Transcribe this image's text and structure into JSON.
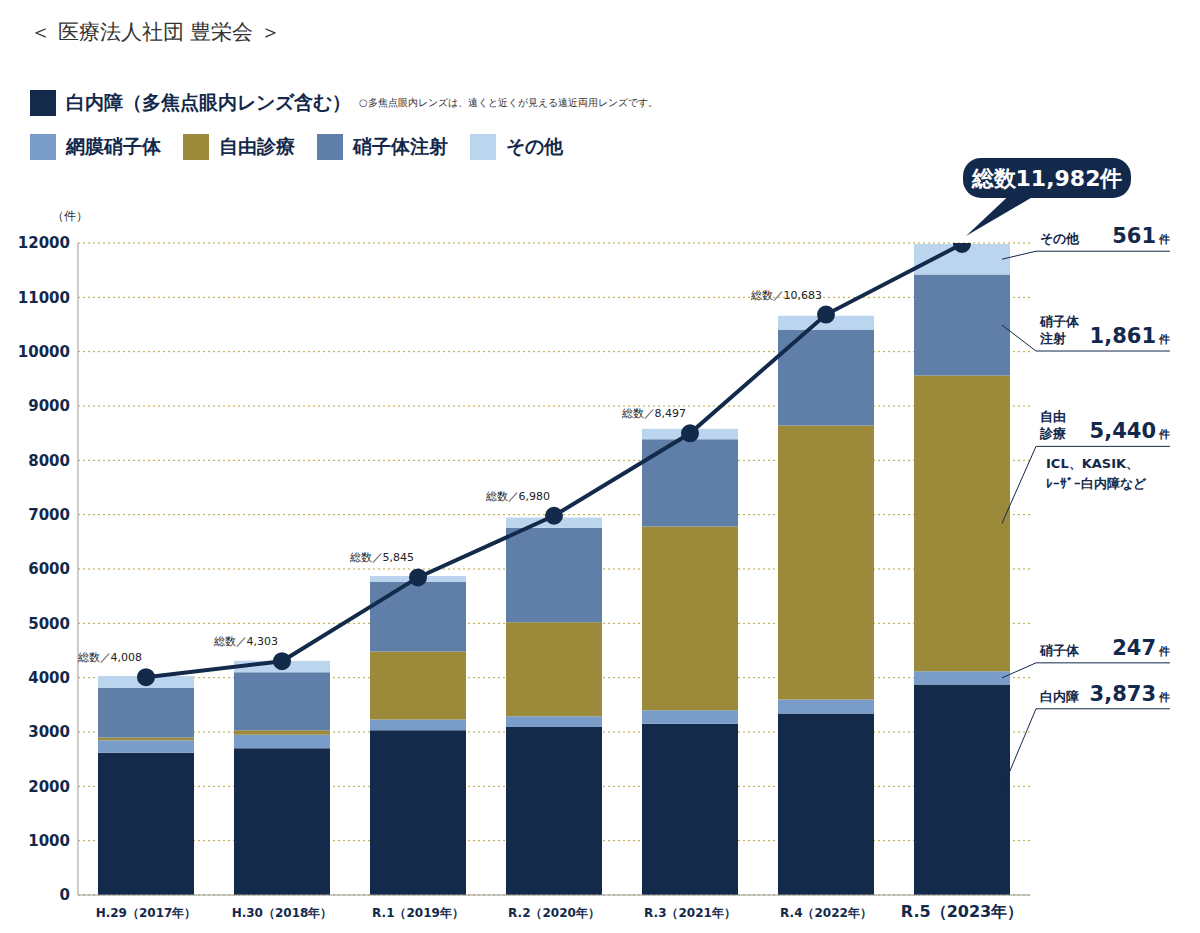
{
  "chart_data": {
    "type": "bar",
    "title": "＜ 医療法人社団 豊栄会 ＞",
    "note": "○多焦点眼内レンズは、遠くと近くが見える遠近両用レンズです。",
    "y_label": "（件）",
    "categories": [
      "H.29（2017年）",
      "H.30（2018年）",
      "R.1（2019年）",
      "R.2（2020年）",
      "R.3（2021年）",
      "R.4（2022年）",
      "R.5（2023年）"
    ],
    "stacked": true,
    "grid": true,
    "ylim": [
      0,
      12000
    ],
    "yticks": [
      0,
      1000,
      2000,
      3000,
      4000,
      5000,
      6000,
      7000,
      8000,
      9000,
      10000,
      11000,
      12000
    ],
    "series": [
      {
        "name": "白内障（多焦点眼内レンズ含む）",
        "type": "bar",
        "color": "#132a4a",
        "values": [
          2620,
          2700,
          3030,
          3090,
          3150,
          3340,
          3873
        ]
      },
      {
        "name": "網膜硝子体",
        "type": "bar",
        "color": "#7a9cc9",
        "values": [
          230,
          250,
          200,
          200,
          250,
          260,
          247
        ]
      },
      {
        "name": "自由診療",
        "type": "bar",
        "color": "#9c8a3b",
        "values": [
          50,
          80,
          1250,
          1730,
          3380,
          5040,
          5440
        ]
      },
      {
        "name": "硝子体注射",
        "type": "bar",
        "color": "#5f7ea8",
        "values": [
          910,
          1070,
          1280,
          1740,
          1610,
          1760,
          1861
        ]
      },
      {
        "name": "その他",
        "type": "bar",
        "color": "#bcd5ef",
        "values": [
          220,
          210,
          110,
          190,
          190,
          260,
          561
        ]
      },
      {
        "name": "総数",
        "type": "line",
        "color": "#132a4a",
        "marker": "circle",
        "data_labels": true,
        "values": [
          4008,
          4303,
          5845,
          6980,
          8497,
          10683,
          11982
        ],
        "value_labels": [
          "総数／4,008",
          "総数／4,303",
          "総数／5,845",
          "総数／6,980",
          "総数／8,497",
          "総数／10,683",
          "総数11,982件"
        ]
      }
    ],
    "annotations": [
      {
        "series": "白内障（多焦点眼内レンズ含む）",
        "label_lines": [
          "白内障"
        ],
        "value_label": "3,873",
        "unit": "件"
      },
      {
        "series": "網膜硝子体",
        "label_lines": [
          "硝子体"
        ],
        "value_label": "247",
        "unit": "件"
      },
      {
        "series": "自由診療",
        "label_lines": [
          "自由",
          "診療"
        ],
        "value_label": "5,440",
        "unit": "件",
        "note_lines": [
          "ICL、KASIK、",
          "ﾚｰｻﾞｰ白内障など"
        ]
      },
      {
        "series": "硝子体注射",
        "label_lines": [
          "硝子体",
          "注射"
        ],
        "value_label": "1,861",
        "unit": "件"
      },
      {
        "series": "その他",
        "label_lines": [
          "その他"
        ],
        "value_label": "561",
        "unit": "件"
      }
    ]
  }
}
